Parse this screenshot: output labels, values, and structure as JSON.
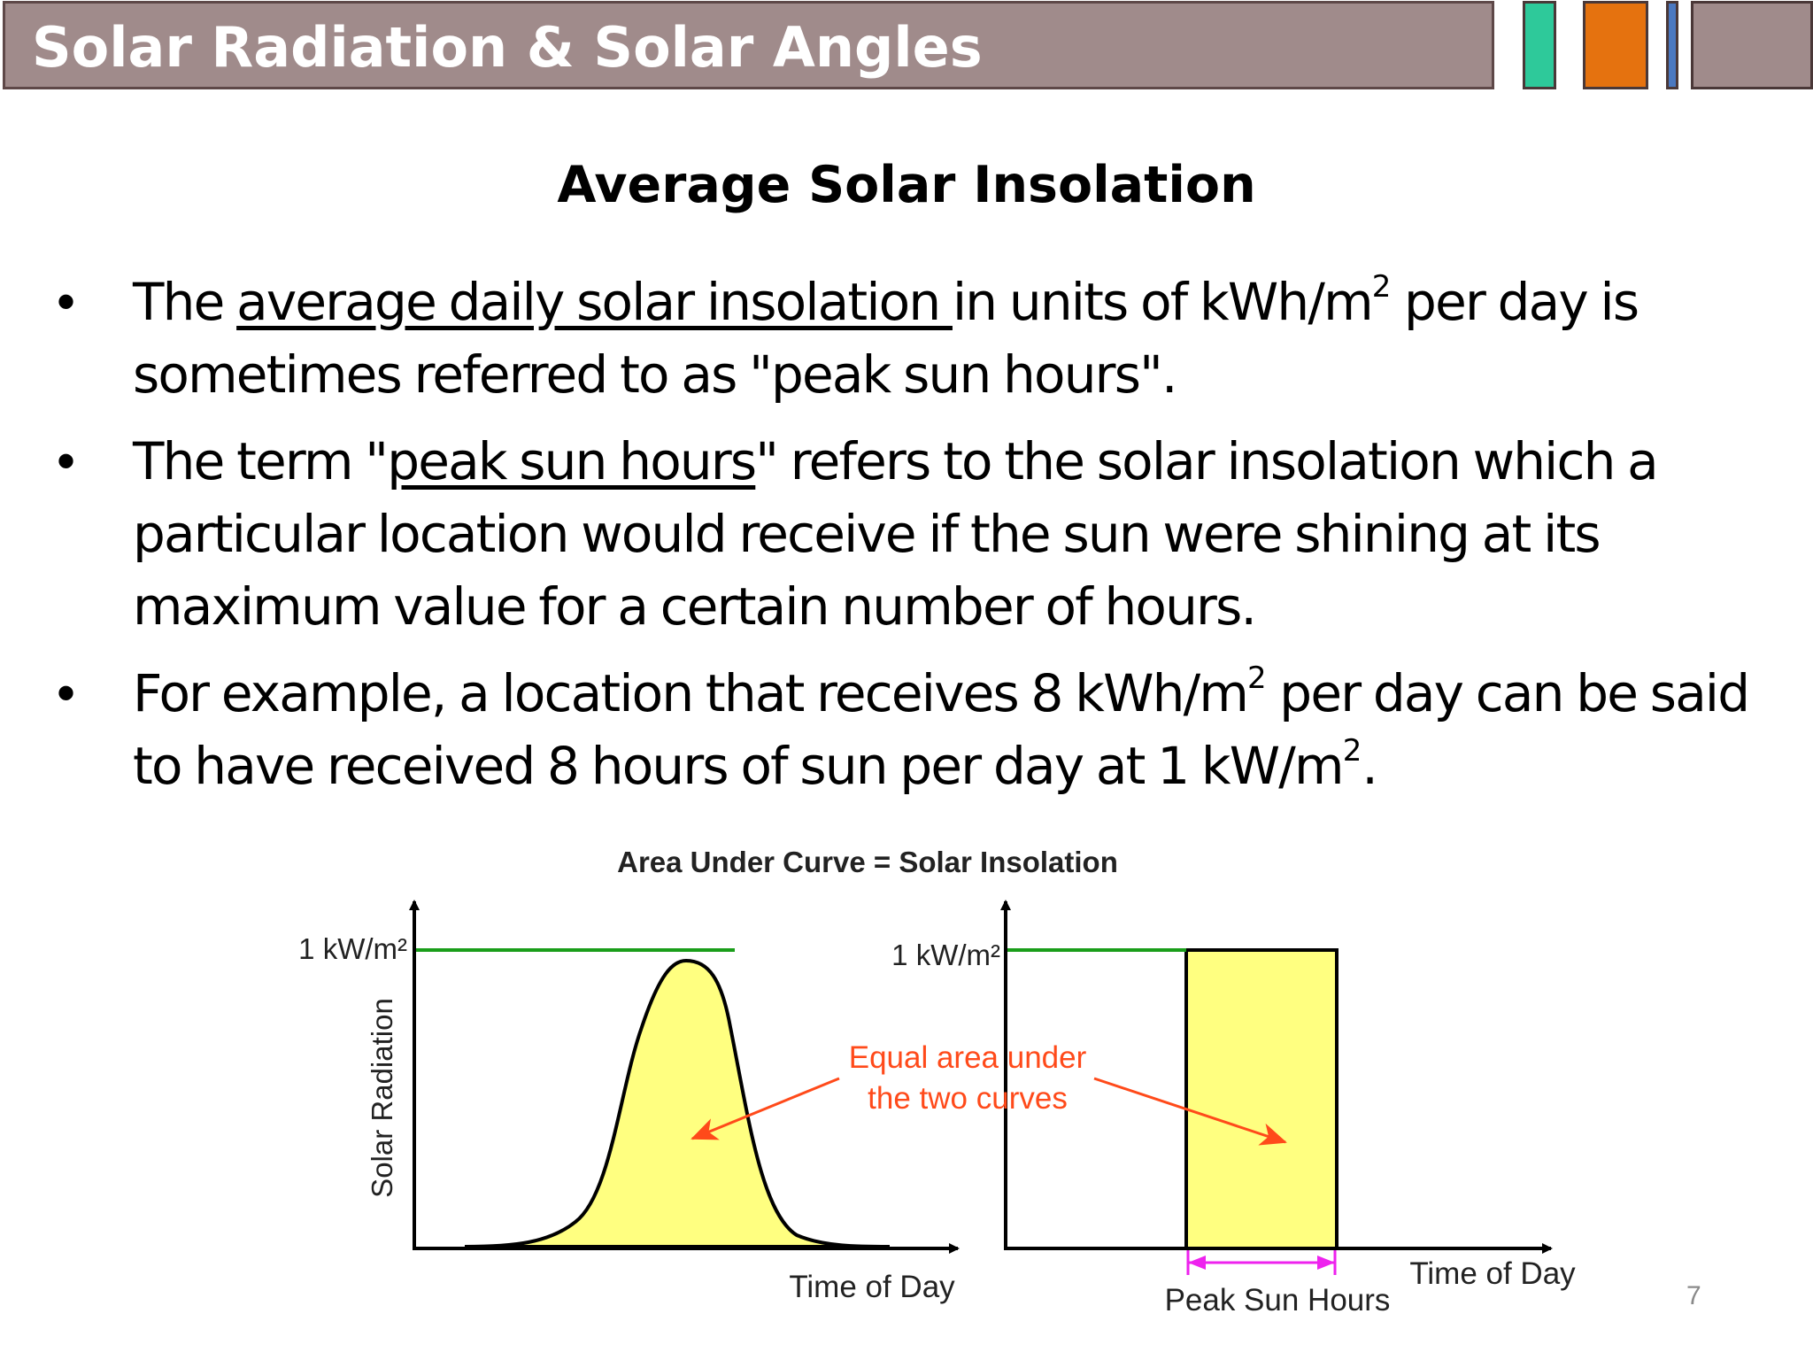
{
  "header": {
    "title": "Solar Radiation & Solar Angles",
    "accent_colors": [
      "#2ec99a",
      "#e5720f",
      "#4a78c0",
      "#a08b8b"
    ]
  },
  "slide": {
    "subtitle": "Average Solar Insolation",
    "bullets": [
      {
        "t1": "The ",
        "u1": "average daily solar insolation ",
        "t2": "in units of kWh/m",
        "sup1": "2",
        "t3": " per day is sometimes referred to as \"peak sun hours\"."
      },
      {
        "t1": "The term \"",
        "u1": "peak sun hours",
        "t2": "\" refers to the solar insolation which a particular location would receive if the sun were shining at its maximum value for a certain number of hours."
      },
      {
        "t1": "For example, a location that receives 8 kWh/m",
        "sup1": "2",
        "t2": " per day can be said to have received 8 hours of sun per day at 1 kW/m",
        "sup2": "2",
        "t3": "."
      }
    ],
    "page_number": "7"
  },
  "diagram": {
    "title": "Area Under Curve = Solar Insolation",
    "left": {
      "peak_label": "1 kW/m²",
      "y_axis_label": "Solar Radiation",
      "x_axis_label": "Time of Day"
    },
    "right": {
      "peak_label": "1 kW/m²",
      "x_axis_label": "Time of Day",
      "span_label": "Peak Sun Hours"
    },
    "annotation_line1": "Equal area under",
    "annotation_line2": "the two curves",
    "colors": {
      "fill": "#ffff80",
      "peak_line": "#1a9e1a",
      "annotation": "#ff4a1a",
      "span_marker": "#ee22ee"
    }
  }
}
